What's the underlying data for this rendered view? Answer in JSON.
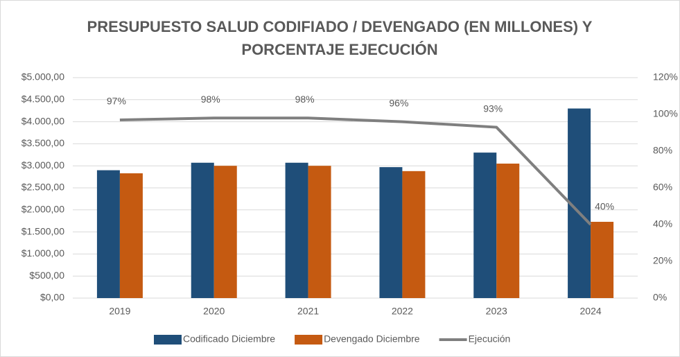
{
  "chart_data": {
    "type": "bar_line",
    "title": "PRESUPUESTO SALUD CODIFIADO / DEVENGADO (EN MILLONES) Y PORCENTAJE EJECUCIÓN",
    "categories": [
      "2019",
      "2020",
      "2021",
      "2022",
      "2023",
      "2024"
    ],
    "series": [
      {
        "name": "Codificado Diciembre",
        "color": "#1f4e79",
        "type": "bar",
        "values": [
          2900,
          3070,
          3070,
          2970,
          3300,
          4300
        ]
      },
      {
        "name": "Devengado Diciembre",
        "color": "#c55a11",
        "type": "bar",
        "values": [
          2830,
          3000,
          3000,
          2880,
          3050,
          1730
        ]
      },
      {
        "name": "Ejecución",
        "color": "#7f7f7f",
        "type": "line",
        "axis": "y2",
        "values": [
          97,
          98,
          98,
          96,
          93,
          40
        ],
        "value_labels": [
          "97%",
          "98%",
          "98%",
          "96%",
          "93%",
          "40%"
        ]
      }
    ],
    "ylim": [
      0,
      5000
    ],
    "yticks": [
      {
        "value": 0,
        "label": "$0,00"
      },
      {
        "value": 500,
        "label": "$500,00"
      },
      {
        "value": 1000,
        "label": "$1.000,00"
      },
      {
        "value": 1500,
        "label": "$1.500,00"
      },
      {
        "value": 2000,
        "label": "$2.000,00"
      },
      {
        "value": 2500,
        "label": "$2.500,00"
      },
      {
        "value": 3000,
        "label": "$3.000,00"
      },
      {
        "value": 3500,
        "label": "$3.500,00"
      },
      {
        "value": 4000,
        "label": "$4.000,00"
      },
      {
        "value": 4500,
        "label": "$4.500,00"
      },
      {
        "value": 5000,
        "label": "$5.000,00"
      }
    ],
    "y2lim": [
      0,
      120
    ],
    "y2ticks": [
      {
        "value": 0,
        "label": "0%"
      },
      {
        "value": 20,
        "label": "20%"
      },
      {
        "value": 40,
        "label": "40%"
      },
      {
        "value": 60,
        "label": "60%"
      },
      {
        "value": 80,
        "label": "80%"
      },
      {
        "value": 100,
        "label": "100%"
      },
      {
        "value": 120,
        "label": "120%"
      }
    ],
    "grid": true
  }
}
